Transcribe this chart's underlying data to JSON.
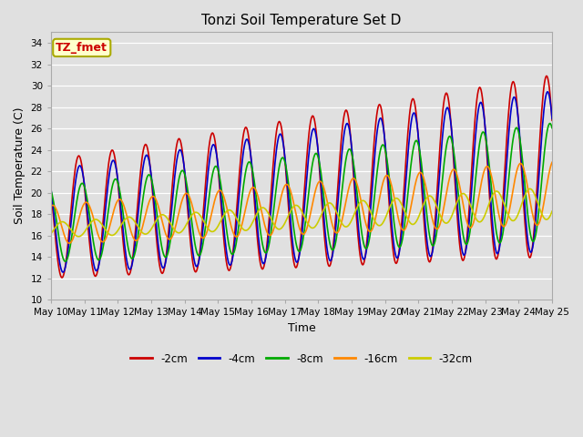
{
  "title": "Tonzi Soil Temperature Set D",
  "xlabel": "Time",
  "ylabel": "Soil Temperature (C)",
  "ylim": [
    10,
    35
  ],
  "yticks": [
    10,
    12,
    14,
    16,
    18,
    20,
    22,
    24,
    26,
    28,
    30,
    32,
    34
  ],
  "x_tick_labels": [
    "May 10",
    "May 11",
    "May 12",
    "May 13",
    "May 14",
    "May 15",
    "May 16",
    "May 17",
    "May 18",
    "May 19",
    "May 20",
    "May 21",
    "May 22",
    "May 23",
    "May 24",
    "May 25"
  ],
  "series": [
    {
      "label": "-2cm",
      "color": "#cc0000",
      "lw": 1.2
    },
    {
      "label": "-4cm",
      "color": "#0000cc",
      "lw": 1.2
    },
    {
      "label": "-8cm",
      "color": "#00aa00",
      "lw": 1.2
    },
    {
      "label": "-16cm",
      "color": "#ff8800",
      "lw": 1.2
    },
    {
      "label": "-32cm",
      "color": "#cccc00",
      "lw": 1.2
    }
  ],
  "annotation_text": "TZ_fmet",
  "annotation_color": "#cc0000",
  "annotation_bg": "#ffffcc",
  "annotation_edge": "#aaaa00",
  "bg_color": "#e0e0e0",
  "title_fontsize": 11,
  "axis_fontsize": 9,
  "tick_fontsize": 7.5,
  "legend_fontsize": 8.5
}
